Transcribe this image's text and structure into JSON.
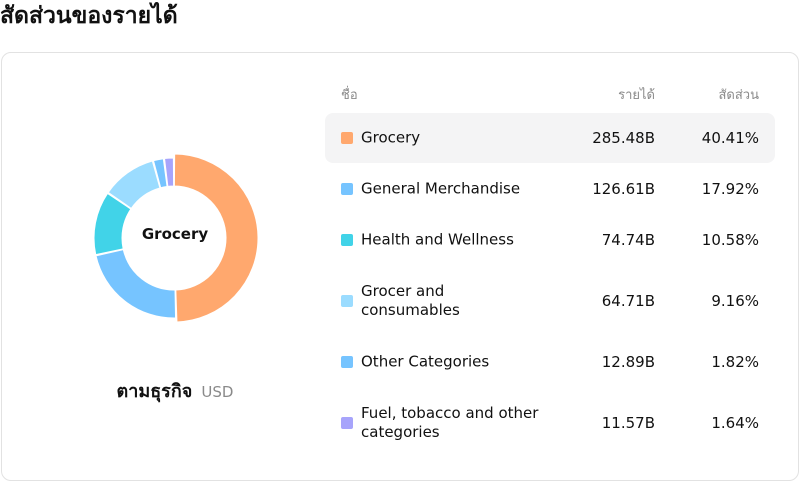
{
  "page": {
    "title": "สัดส่วนของรายได้"
  },
  "chart_data": {
    "type": "pie",
    "center_label": "Grocery",
    "caption": "ตามธุรกิจ",
    "unit": "USD",
    "columns": {
      "name": "ชื่อ",
      "revenue": "รายได้",
      "share": "สัดส่วน"
    },
    "highlighted": "Grocery",
    "slices": [
      {
        "name": "Grocery",
        "revenue": "285.48B",
        "share": "40.41%",
        "value": 40.41,
        "color": "#ffa86e"
      },
      {
        "name": "General Merchandise",
        "revenue": "126.61B",
        "share": "17.92%",
        "value": 17.92,
        "color": "#76c4ff"
      },
      {
        "name": "Health and Wellness",
        "revenue": "74.74B",
        "share": "10.58%",
        "value": 10.58,
        "color": "#41d3e8"
      },
      {
        "name": "Grocer and consumables",
        "revenue": "64.71B",
        "share": "9.16%",
        "value": 9.16,
        "color": "#9bdcff"
      },
      {
        "name": "Other Categories",
        "revenue": "12.89B",
        "share": "1.82%",
        "value": 1.82,
        "color": "#76c4ff"
      },
      {
        "name": "Fuel, tobacco and other categories",
        "revenue": "11.57B",
        "share": "1.64%",
        "value": 1.64,
        "color": "#a7a4fb"
      }
    ]
  }
}
